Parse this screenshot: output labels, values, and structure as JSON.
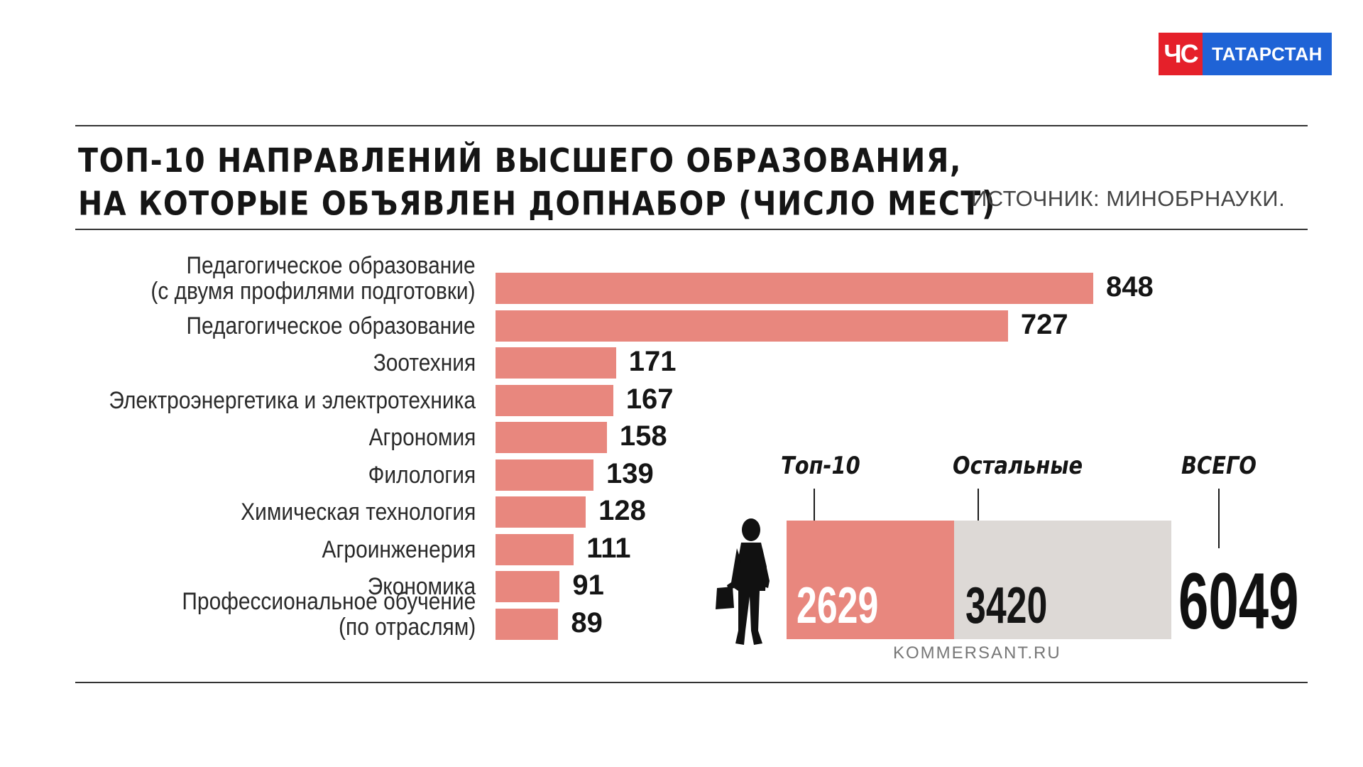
{
  "logo": {
    "left_text": "ЧС",
    "right_text": "ТАТАРСТАН",
    "colors": {
      "red": "#e5202a",
      "blue": "#1f63d6"
    }
  },
  "title_lines": [
    "ТОП-10 НАПРАВЛЕНИЙ ВЫСШЕГО ОБРАЗОВАНИЯ,",
    "НА КОТОРЫЕ ОБЪЯВЛЕН ДОПНАБОР (ЧИСЛО МЕСТ)"
  ],
  "source": "ИСТОЧНИК: МИНОБРНАУКИ.",
  "chart_data": [
    {
      "type": "bar",
      "orientation": "horizontal",
      "title": "ТОП-10 НАПРАВЛЕНИЙ ВЫСШЕГО ОБРАЗОВАНИЯ, НА КОТОРЫЕ ОБЪЯВЛЕН ДОПНАБОР (ЧИСЛО МЕСТ)",
      "categories": [
        [
          "Педагогическое образование",
          "(с двумя профилями подготовки)"
        ],
        [
          "Педагогическое образование"
        ],
        [
          "Зоотехния"
        ],
        [
          "Электроэнергетика и электротехника"
        ],
        [
          "Агрономия"
        ],
        [
          "Филология"
        ],
        [
          "Химическая технология"
        ],
        [
          "Агроинженерия"
        ],
        [
          "Экономика"
        ],
        [
          "Профессиональное обучение",
          "(по отраслям)"
        ]
      ],
      "values": [
        848,
        727,
        171,
        167,
        158,
        139,
        128,
        111,
        91,
        89
      ],
      "value_labels": [
        "848",
        "727",
        "171",
        "167",
        "158",
        "139",
        "128",
        "111",
        "91",
        "89"
      ],
      "bar_color": "#e8877e"
    },
    {
      "type": "bar",
      "orientation": "stacked-horizontal",
      "segments": [
        {
          "label": "Топ-10",
          "value": 2629,
          "value_label": "2629",
          "color": "#e8877e"
        },
        {
          "label": "Остальные",
          "value": 3420,
          "value_label": "3420",
          "color": "#ddd9d6"
        }
      ],
      "total": {
        "label": "ВСЕГО",
        "value": 6049,
        "value_label": "6049"
      }
    }
  ],
  "credit": "KOMMERSANT.RU"
}
